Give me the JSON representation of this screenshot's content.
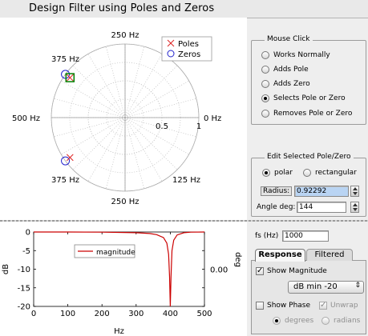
{
  "window": {
    "title": "Design Filter using Poles and Zeros"
  },
  "pz_plot": {
    "freq_labels": {
      "top": "250 Hz",
      "upper_left": "375 Hz",
      "left": "500 Hz",
      "right": "0 Hz",
      "lower_left": "375 Hz",
      "lower_right": "125 Hz",
      "bottom": "250 Hz"
    },
    "radius_labels": [
      "0.5",
      "1"
    ],
    "legend": {
      "poles": "Poles",
      "zeros": "Zeros"
    },
    "poles": [
      {
        "radius": 0.92292,
        "angle_deg": 144
      },
      {
        "radius": 0.92292,
        "angle_deg": -144
      }
    ],
    "zeros": [
      {
        "radius": 1.0,
        "angle_deg": 144
      },
      {
        "radius": 1.0,
        "angle_deg": -144
      }
    ],
    "selected": {
      "radius": 0.92292,
      "angle_deg": 144
    },
    "colors": {
      "pole": "#dd2222",
      "zero": "#2222cc",
      "selected": "#008000"
    }
  },
  "mouse_click": {
    "title": "Mouse Click",
    "options": [
      "Works Normally",
      "Adds Pole",
      "Adds Zero",
      "Selects Pole or Zero",
      "Removes Pole or Zero"
    ],
    "selected_index": 3
  },
  "edit": {
    "title": "Edit Selected Pole/Zero",
    "polar_label": "polar",
    "rect_label": "rectangular",
    "polar_selected": true,
    "radius_label": "Radius:",
    "radius_value": "0.92292",
    "angle_label": "Angle deg:",
    "angle_value": "144"
  },
  "fs": {
    "label": "fs (Hz)",
    "value": "1000"
  },
  "tabs": {
    "response": "Response",
    "filtered": "Filtered",
    "active": "Response"
  },
  "response": {
    "show_magnitude_label": "Show Magnitude",
    "show_magnitude": true,
    "db_min_value": "dB min -20",
    "show_phase_label": "Show Phase",
    "show_phase": false,
    "unwrap_label": "Unwrap",
    "unwrap": true,
    "degrees_label": "degrees",
    "radians_label": "radians"
  },
  "chart_data": {
    "type": "line",
    "xlabel": "Hz",
    "ylabel": "dB",
    "ylabel_right": "deg",
    "right_tick": "0.00",
    "xlim": [
      0,
      500
    ],
    "ylim": [
      -20,
      0
    ],
    "xticks": [
      0,
      100,
      200,
      300,
      400,
      500
    ],
    "yticks": [
      0,
      -5,
      -10,
      -15,
      -20
    ],
    "grid": false,
    "legend_position": "top-left",
    "series": [
      {
        "name": "magnitude",
        "color": "#cc0000",
        "x": [
          0,
          100,
          200,
          300,
          340,
          360,
          380,
          390,
          395,
          398,
          400,
          402,
          405,
          410,
          420,
          440,
          460,
          500
        ],
        "y": [
          0,
          0,
          -0.05,
          -0.2,
          -0.4,
          -0.7,
          -1.5,
          -3,
          -6,
          -12,
          -20,
          -12,
          -5,
          -2.2,
          -0.8,
          -0.2,
          -0.05,
          0
        ]
      }
    ]
  }
}
